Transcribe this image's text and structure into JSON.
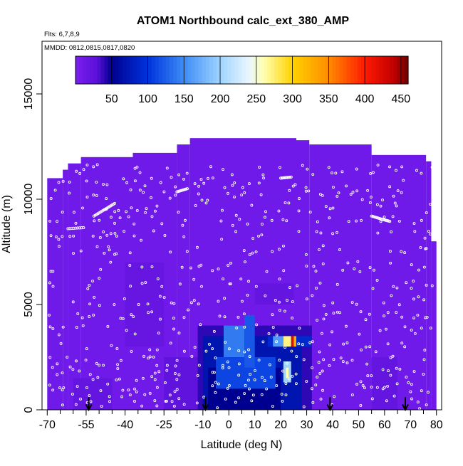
{
  "chart_data": {
    "type": "heatmap",
    "title": "ATOM1 Northbound calc_ext_380_AMP",
    "subtitle_flts": "Flts: 6,7,8,9",
    "subtitle_mmdd": "MMDD: 0812,0815,0817,0820",
    "xlabel": "Latitude (deg N)",
    "ylabel": "Altitude (m)",
    "xlim": [
      -72,
      82
    ],
    "ylim": [
      0,
      17500
    ],
    "x_ticks": [
      -70,
      -55,
      -40,
      -25,
      -10,
      0,
      10,
      20,
      30,
      40,
      50,
      60,
      70,
      80
    ],
    "x_tick_labels": [
      "-70",
      "-55",
      "-40",
      "-25",
      "-10",
      "0",
      "10",
      "20",
      "30",
      "40",
      "50",
      "60",
      "70",
      "80"
    ],
    "x_minor_ticks": [
      -65,
      -60,
      -50,
      -45,
      -35,
      -30,
      -20,
      -15,
      -5,
      5,
      15,
      25,
      35,
      45,
      55,
      65,
      75
    ],
    "y_ticks": [
      0,
      5000,
      10000,
      15000
    ],
    "y_tick_labels": [
      "0",
      "5000",
      "10000",
      "15000"
    ],
    "colorbar": {
      "range": [
        0,
        460
      ],
      "ticks": [
        50,
        100,
        150,
        200,
        250,
        300,
        350,
        400,
        450
      ],
      "tick_labels": [
        "50",
        "100",
        "150",
        "200",
        "250",
        "300",
        "350",
        "400",
        "450"
      ],
      "stops": [
        {
          "v": 0,
          "color": "#7a1ff0"
        },
        {
          "v": 30,
          "color": "#5a10d8"
        },
        {
          "v": 50,
          "color": "#000090"
        },
        {
          "v": 100,
          "color": "#0033dd"
        },
        {
          "v": 150,
          "color": "#3d8cf5"
        },
        {
          "v": 200,
          "color": "#9fd4ff"
        },
        {
          "v": 240,
          "color": "#eaf6ff"
        },
        {
          "v": 260,
          "color": "#ffffb0"
        },
        {
          "v": 300,
          "color": "#ffd200"
        },
        {
          "v": 350,
          "color": "#ff8c00"
        },
        {
          "v": 400,
          "color": "#ff1a00"
        },
        {
          "v": 440,
          "color": "#c00000"
        },
        {
          "v": 460,
          "color": "#700000"
        }
      ]
    },
    "field": {
      "background_value": 10,
      "top_profile": [
        {
          "from": -70,
          "to": -64,
          "top": 11000
        },
        {
          "from": -64,
          "to": -62,
          "top": 11400
        },
        {
          "from": -62,
          "to": -57,
          "top": 11700
        },
        {
          "from": -57,
          "to": -37,
          "top": 12000
        },
        {
          "from": -37,
          "to": -20,
          "top": 12200
        },
        {
          "from": -20,
          "to": -15,
          "top": 12600
        },
        {
          "from": -15,
          "to": 26,
          "top": 12900
        },
        {
          "from": 26,
          "to": 31,
          "top": 12800
        },
        {
          "from": 31,
          "to": 55,
          "top": 12600
        },
        {
          "from": 55,
          "to": 76,
          "top": 12100
        },
        {
          "from": 76,
          "to": 78,
          "top": 11800
        },
        {
          "from": 78,
          "to": 80,
          "top": 8000
        }
      ],
      "patches": [
        {
          "lat": [
            -60,
            -45
          ],
          "alt": [
            0,
            1500
          ],
          "value": 20
        },
        {
          "lat": [
            -40,
            -25
          ],
          "alt": [
            3000,
            7000
          ],
          "value": 18
        },
        {
          "lat": [
            -25,
            -12
          ],
          "alt": [
            0,
            2500
          ],
          "value": 25
        },
        {
          "lat": [
            -12,
            32
          ],
          "alt": [
            0,
            4000
          ],
          "value": 40
        },
        {
          "lat": [
            -10,
            28
          ],
          "alt": [
            0,
            3500
          ],
          "value": 70
        },
        {
          "lat": [
            -8,
            20
          ],
          "alt": [
            0,
            2000
          ],
          "value": 50
        },
        {
          "lat": [
            -5,
            18
          ],
          "alt": [
            1000,
            2500
          ],
          "value": 110
        },
        {
          "lat": [
            -2,
            6
          ],
          "alt": [
            2500,
            4000
          ],
          "value": 140
        },
        {
          "lat": [
            6,
            10
          ],
          "alt": [
            2000,
            4500
          ],
          "value": 120
        },
        {
          "lat": [
            15,
            32
          ],
          "alt": [
            3000,
            3500
          ],
          "value": 90
        },
        {
          "lat": [
            21,
            24
          ],
          "alt": [
            1300,
            2300
          ],
          "value": 200
        },
        {
          "lat": [
            22,
            23
          ],
          "alt": [
            1500,
            2000
          ],
          "value": 260
        },
        {
          "lat": [
            17,
            21
          ],
          "alt": [
            3000,
            3500
          ],
          "value": 160
        },
        {
          "lat": [
            21,
            24
          ],
          "alt": [
            3000,
            3500
          ],
          "value": 270
        },
        {
          "lat": [
            24,
            25
          ],
          "alt": [
            3000,
            3500
          ],
          "value": 420
        },
        {
          "lat": [
            25,
            26
          ],
          "alt": [
            3000,
            3500
          ],
          "value": 330
        },
        {
          "lat": [
            10,
            25
          ],
          "alt": [
            5000,
            6000
          ],
          "value": 20
        },
        {
          "lat": [
            55,
            65
          ],
          "alt": [
            0,
            2500
          ],
          "value": 20
        }
      ]
    },
    "flight_track_segments": [
      {
        "x": [
          -52,
          -48,
          -44
        ],
        "y": [
          9200,
          9500,
          9800
        ]
      },
      {
        "x": [
          55,
          59,
          62
        ],
        "y": [
          9200,
          9050,
          8950
        ]
      },
      {
        "x": [
          -20,
          -16
        ],
        "y": [
          10350,
          10500
        ]
      },
      {
        "x": [
          20,
          24
        ],
        "y": [
          11000,
          11050
        ]
      },
      {
        "x": [
          -62,
          -56
        ],
        "y": [
          8600,
          8650
        ]
      }
    ],
    "flight_sample_alt_levels": [
      300,
      800,
      1300,
      1800,
      2300,
      3000,
      3800,
      4500,
      5200,
      6000,
      6800,
      7600,
      8300,
      9000,
      9600,
      10200,
      10800,
      11400
    ],
    "sounding_markers_lat": [
      -54,
      -9,
      39,
      68
    ]
  }
}
